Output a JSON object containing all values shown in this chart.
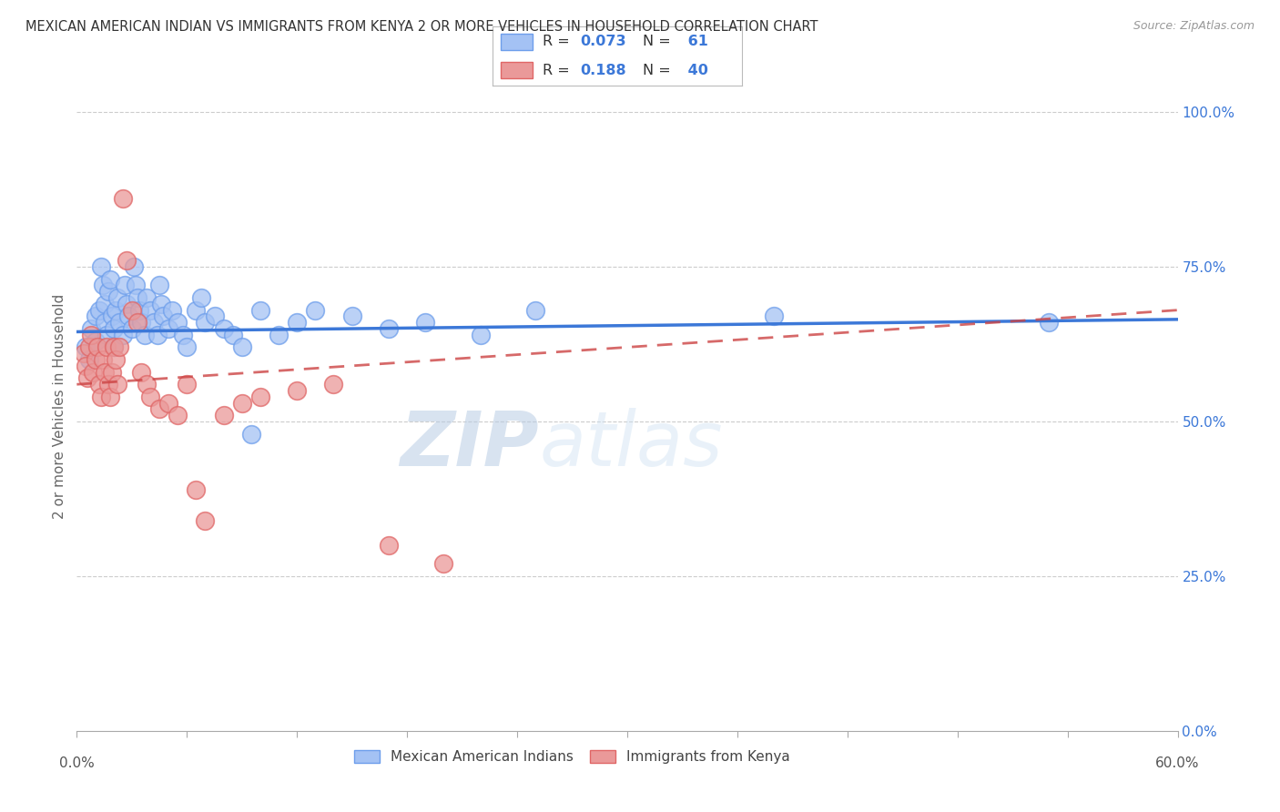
{
  "title": "MEXICAN AMERICAN INDIAN VS IMMIGRANTS FROM KENYA 2 OR MORE VEHICLES IN HOUSEHOLD CORRELATION CHART",
  "source": "Source: ZipAtlas.com",
  "ylabel_label": "2 or more Vehicles in Household",
  "right_yticks": [
    "0.0%",
    "25.0%",
    "50.0%",
    "75.0%",
    "100.0%"
  ],
  "right_ytick_vals": [
    0.0,
    0.25,
    0.5,
    0.75,
    1.0
  ],
  "xlim": [
    0.0,
    0.6
  ],
  "ylim": [
    0.0,
    1.05
  ],
  "legend_label_blue": "Mexican American Indians",
  "legend_label_pink": "Immigrants from Kenya",
  "R_blue": 0.073,
  "N_blue": 61,
  "R_pink": 0.188,
  "N_pink": 40,
  "blue_color": "#a4c2f4",
  "pink_color": "#ea9999",
  "blue_edge_color": "#6d9eeb",
  "pink_edge_color": "#e06666",
  "blue_line_color": "#3c78d8",
  "pink_line_color": "#cc4444",
  "watermark_zip": "ZIP",
  "watermark_atlas": "atlas",
  "blue_scatter_x": [
    0.005,
    0.007,
    0.008,
    0.01,
    0.01,
    0.012,
    0.013,
    0.014,
    0.015,
    0.015,
    0.016,
    0.017,
    0.018,
    0.019,
    0.02,
    0.02,
    0.021,
    0.022,
    0.023,
    0.025,
    0.026,
    0.027,
    0.028,
    0.03,
    0.031,
    0.032,
    0.033,
    0.034,
    0.035,
    0.037,
    0.038,
    0.04,
    0.042,
    0.044,
    0.045,
    0.046,
    0.047,
    0.05,
    0.052,
    0.055,
    0.058,
    0.06,
    0.065,
    0.068,
    0.07,
    0.075,
    0.08,
    0.085,
    0.09,
    0.095,
    0.1,
    0.11,
    0.12,
    0.13,
    0.15,
    0.17,
    0.19,
    0.22,
    0.25,
    0.38,
    0.53
  ],
  "blue_scatter_y": [
    0.62,
    0.6,
    0.65,
    0.67,
    0.63,
    0.68,
    0.75,
    0.72,
    0.69,
    0.66,
    0.64,
    0.71,
    0.73,
    0.67,
    0.65,
    0.62,
    0.68,
    0.7,
    0.66,
    0.64,
    0.72,
    0.69,
    0.67,
    0.65,
    0.75,
    0.72,
    0.7,
    0.68,
    0.66,
    0.64,
    0.7,
    0.68,
    0.66,
    0.64,
    0.72,
    0.69,
    0.67,
    0.65,
    0.68,
    0.66,
    0.64,
    0.62,
    0.68,
    0.7,
    0.66,
    0.67,
    0.65,
    0.64,
    0.62,
    0.48,
    0.68,
    0.64,
    0.66,
    0.68,
    0.67,
    0.65,
    0.66,
    0.64,
    0.68,
    0.67,
    0.66
  ],
  "pink_scatter_x": [
    0.004,
    0.005,
    0.006,
    0.007,
    0.008,
    0.009,
    0.01,
    0.011,
    0.012,
    0.013,
    0.014,
    0.015,
    0.016,
    0.017,
    0.018,
    0.019,
    0.02,
    0.021,
    0.022,
    0.023,
    0.025,
    0.027,
    0.03,
    0.033,
    0.035,
    0.038,
    0.04,
    0.045,
    0.05,
    0.055,
    0.06,
    0.065,
    0.07,
    0.08,
    0.09,
    0.1,
    0.12,
    0.14,
    0.17,
    0.2
  ],
  "pink_scatter_y": [
    0.61,
    0.59,
    0.57,
    0.62,
    0.64,
    0.58,
    0.6,
    0.62,
    0.56,
    0.54,
    0.6,
    0.58,
    0.62,
    0.56,
    0.54,
    0.58,
    0.62,
    0.6,
    0.56,
    0.62,
    0.86,
    0.76,
    0.68,
    0.66,
    0.58,
    0.56,
    0.54,
    0.52,
    0.53,
    0.51,
    0.56,
    0.39,
    0.34,
    0.51,
    0.53,
    0.54,
    0.55,
    0.56,
    0.3,
    0.27
  ]
}
